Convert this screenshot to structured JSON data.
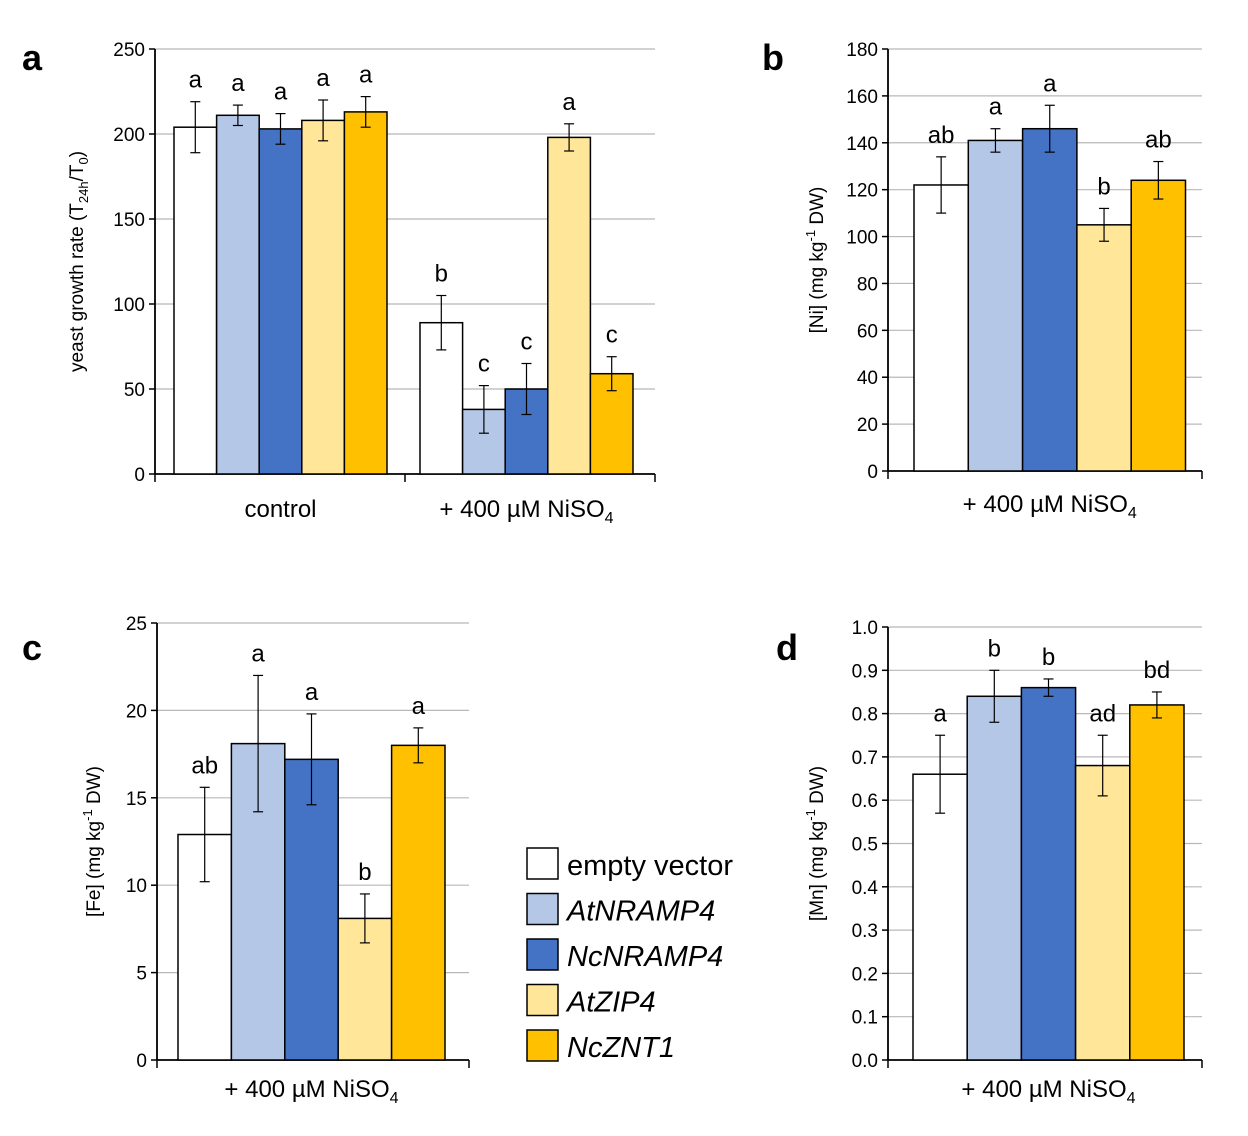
{
  "colors": {
    "empty_vector": "#ffffff",
    "AtNRAMP4": "#b4c7e7",
    "NcNRAMP4": "#4472c4",
    "AtZIP4": "#ffe699",
    "NcZNT1": "#ffc000"
  },
  "legend": [
    {
      "key": "empty_vector",
      "label": "empty vector",
      "italic": false
    },
    {
      "key": "AtNRAMP4",
      "label": "AtNRAMP4",
      "italic": true
    },
    {
      "key": "NcNRAMP4",
      "label": "NcNRAMP4",
      "italic": true
    },
    {
      "key": "AtZIP4",
      "label": "AtZIP4",
      "italic": true
    },
    {
      "key": "NcZNT1",
      "label": "NcZNT1",
      "italic": true
    }
  ],
  "chart_data": [
    {
      "panel": "a",
      "type": "bar",
      "ylabel": {
        "main": "yeast growth rate (T",
        "sub1": "24h",
        "mid": "/T",
        "sub2": "0",
        "end": ")"
      },
      "ylim": [
        0,
        250
      ],
      "ticks": [
        0,
        50,
        100,
        150,
        200,
        250
      ],
      "tick_labels": [
        "0",
        "50",
        "100",
        "150",
        "200",
        "250"
      ],
      "grid": true,
      "groups": [
        {
          "label": "control",
          "label_sub": "",
          "values": [
            204,
            211,
            203,
            208,
            213
          ],
          "errors": [
            15,
            6,
            9,
            12,
            9
          ],
          "letters": [
            "a",
            "a",
            "a",
            "a",
            "a"
          ]
        },
        {
          "label": "+ 400 µM NiSO",
          "label_sub": "4",
          "values": [
            89,
            38,
            50,
            198,
            59
          ],
          "errors": [
            16,
            14,
            15,
            8,
            10
          ],
          "letters": [
            "b",
            "c",
            "c",
            "a",
            "c"
          ]
        }
      ]
    },
    {
      "panel": "b",
      "type": "bar",
      "ylabel": {
        "main": "[Ni] (mg kg",
        "sup": "-1",
        "end": " DW)"
      },
      "ylim": [
        0,
        180
      ],
      "ticks": [
        0,
        20,
        40,
        60,
        80,
        100,
        120,
        140,
        160,
        180
      ],
      "tick_labels": [
        "0",
        "20",
        "40",
        "60",
        "80",
        "100",
        "120",
        "140",
        "160",
        "180"
      ],
      "grid": true,
      "groups": [
        {
          "label": "+ 400 µM NiSO",
          "label_sub": "4",
          "values": [
            122,
            141,
            146,
            105,
            124
          ],
          "errors": [
            12,
            5,
            10,
            7,
            8
          ],
          "letters": [
            "ab",
            "a",
            "a",
            "b",
            "ab"
          ]
        }
      ]
    },
    {
      "panel": "c",
      "type": "bar",
      "ylabel": {
        "main": "[Fe] (mg kg",
        "sup": "-1",
        "end": " DW)"
      },
      "ylim": [
        0,
        25
      ],
      "ticks": [
        0,
        5,
        10,
        15,
        20,
        25
      ],
      "tick_labels": [
        "0",
        "5",
        "10",
        "15",
        "20",
        "25"
      ],
      "grid": true,
      "groups": [
        {
          "label": "+ 400 µM NiSO",
          "label_sub": "4",
          "values": [
            12.9,
            18.1,
            17.2,
            8.1,
            18.0
          ],
          "errors": [
            2.7,
            3.9,
            2.6,
            1.4,
            1.0
          ],
          "letters": [
            "ab",
            "a",
            "a",
            "b",
            "a"
          ]
        }
      ]
    },
    {
      "panel": "d",
      "type": "bar",
      "ylabel": {
        "main": "[Mn] (mg kg",
        "sup": "-1",
        "end": " DW)"
      },
      "ylim": [
        0,
        1.0
      ],
      "ticks": [
        0,
        0.1,
        0.2,
        0.3,
        0.4,
        0.5,
        0.6,
        0.7,
        0.8,
        0.9,
        1.0
      ],
      "tick_labels": [
        "0.0",
        "0.1",
        "0.2",
        "0.3",
        "0.4",
        "0.5",
        "0.6",
        "0.7",
        "0.8",
        "0.9",
        "1.0"
      ],
      "grid": true,
      "groups": [
        {
          "label": "+ 400 µM NiSO",
          "label_sub": "4",
          "values": [
            0.66,
            0.84,
            0.86,
            0.68,
            0.82
          ],
          "errors": [
            0.09,
            0.06,
            0.02,
            0.07,
            0.03
          ],
          "letters": [
            "a",
            "b",
            "b",
            "ad",
            "bd"
          ]
        }
      ]
    }
  ]
}
